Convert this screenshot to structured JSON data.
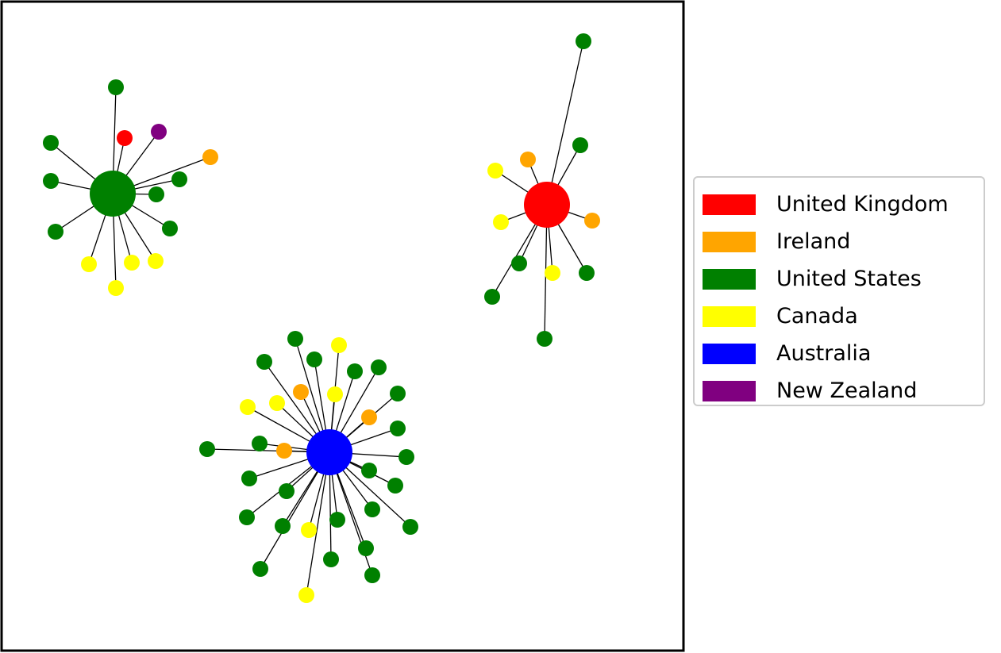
{
  "colors": {
    "United Kingdom": "#ff0000",
    "Ireland": "#ffa500",
    "United States": "#008000",
    "Canada": "#ffff00",
    "Australia": "#0000ff",
    "New Zealand": "#800080"
  },
  "legend": {
    "items": [
      {
        "label": "United Kingdom",
        "color": "#ff0000"
      },
      {
        "label": "Ireland",
        "color": "#ffa500"
      },
      {
        "label": "United States",
        "color": "#008000"
      },
      {
        "label": "Canada",
        "color": "#ffff00"
      },
      {
        "label": "Australia",
        "color": "#0000ff"
      },
      {
        "label": "New Zealand",
        "color": "#800080"
      }
    ]
  },
  "clusters": [
    {
      "hub": "United States",
      "neighbors": [
        "United States",
        "United Kingdom",
        "New Zealand",
        "United States",
        "Ireland",
        "United States",
        "United States",
        "United States",
        "United States",
        "United States",
        "Canada",
        "Canada",
        "Canada",
        "Canada"
      ]
    },
    {
      "hub": "United Kingdom",
      "neighbors": [
        "United States",
        "United States",
        "Ireland",
        "Canada",
        "Canada",
        "Ireland",
        "United States",
        "United States",
        "Canada",
        "United States",
        "United States"
      ]
    },
    {
      "hub": "Australia",
      "neighbors": [
        "United States",
        "Canada",
        "United States",
        "United States",
        "United States",
        "United States",
        "Ireland",
        "Canada",
        "Canada",
        "United States",
        "Canada",
        "Ireland",
        "United States",
        "United States",
        "United States",
        "Ireland",
        "United States",
        "United States",
        "United States",
        "United States",
        "United States",
        "United States",
        "United States",
        "United States",
        "Canada",
        "United States",
        "United States",
        "United States",
        "United States",
        "United States",
        "United States",
        "Canada"
      ]
    }
  ]
}
